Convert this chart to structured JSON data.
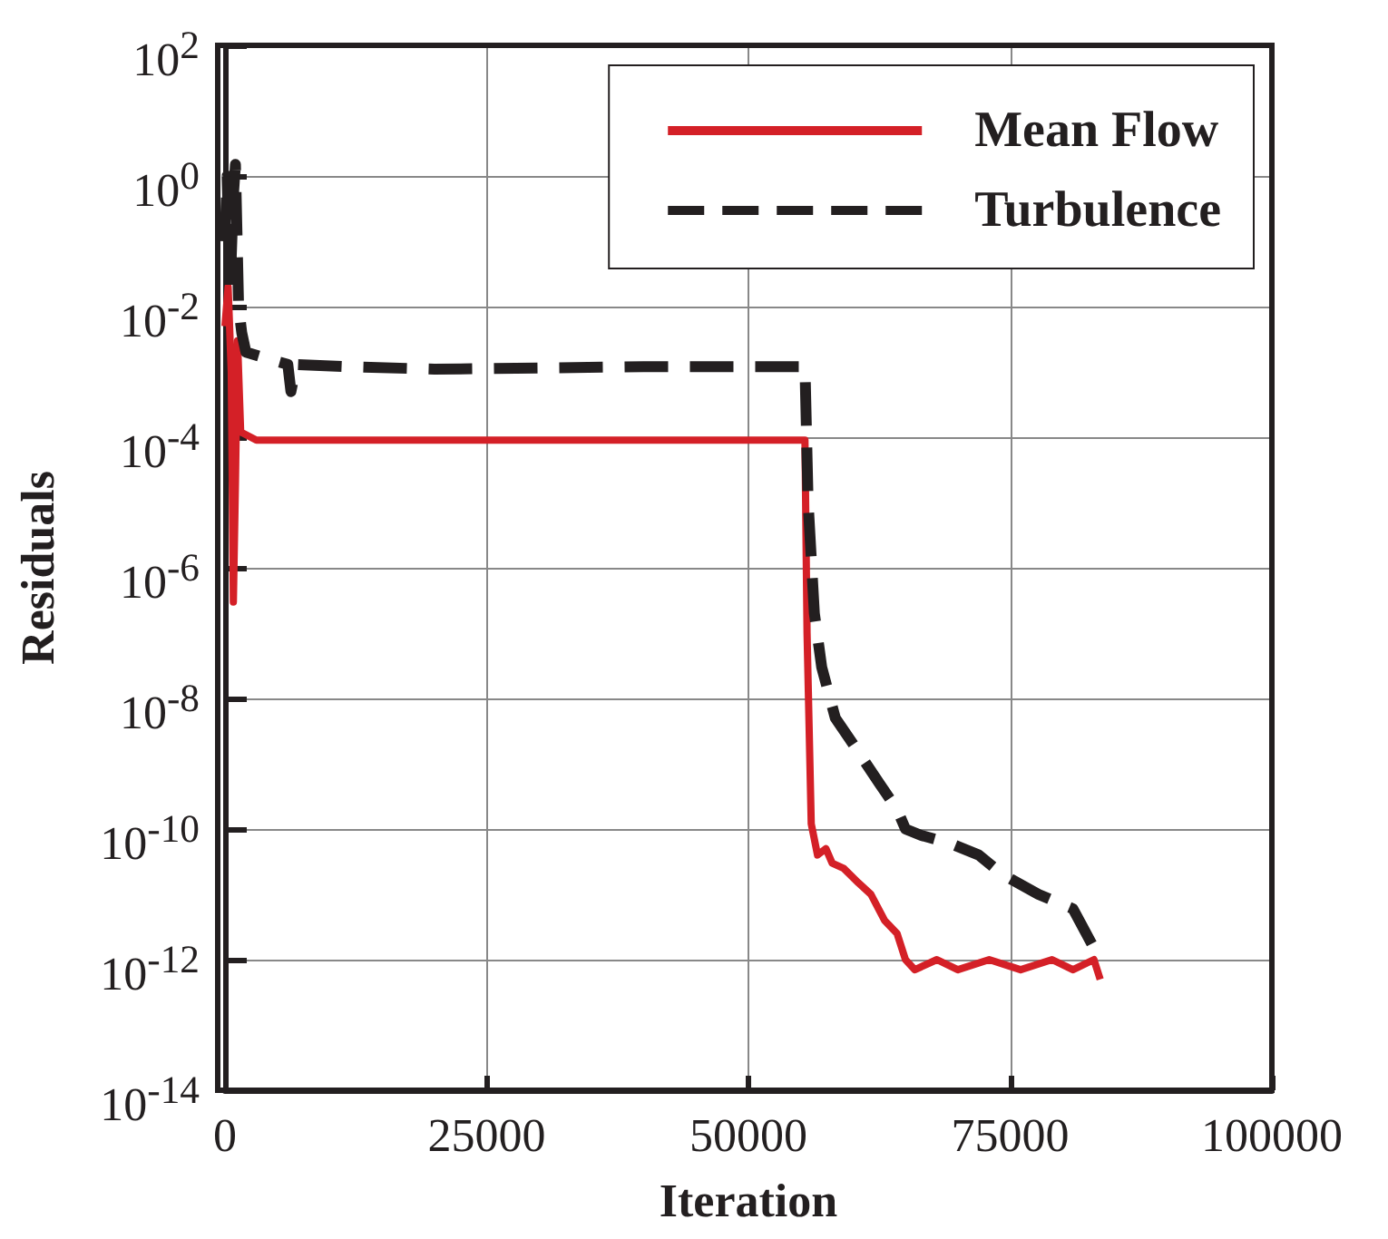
{
  "chart_data": {
    "type": "line",
    "xlabel": "Iteration",
    "ylabel": "Residuals",
    "xlim": [
      0,
      100000
    ],
    "xticks": [
      0,
      25000,
      50000,
      75000,
      100000
    ],
    "ylim": [
      1e-14,
      100
    ],
    "log": "y",
    "yticks": [
      {
        "value": 1e-14,
        "label": "10$^{-14}$"
      },
      {
        "value": 1e-12,
        "label": "10$^{-12}$"
      },
      {
        "value": 1e-10,
        "label": "10$^{-10}$"
      },
      {
        "value": 1e-08,
        "label": "10$^{-8}$"
      },
      {
        "value": 1e-06,
        "label": "10$^{-6}$"
      },
      {
        "value": 0.0001,
        "label": "10$^{-4}$"
      },
      {
        "value": 0.01,
        "label": "10$^{-2}$"
      },
      {
        "value": 1,
        "label": "10$^{0}$"
      },
      {
        "value": 100,
        "label": "10$^{2}$"
      }
    ],
    "grid": true,
    "legend": "top right",
    "marker": "none",
    "series": [
      {
        "name": "Mean Flow",
        "color": "#d42027",
        "line_style": "solid",
        "x": [
          0,
          300,
          600,
          800,
          1000,
          1200,
          1500,
          3000,
          10000,
          30000,
          55400,
          55600,
          56000,
          56600,
          57400,
          58000,
          59100,
          60500,
          61700,
          63000,
          64200,
          65000,
          65900,
          68000,
          70000,
          73000,
          76000,
          79000,
          81000,
          83000,
          83600
        ],
        "values": [
          0.005,
          0.02,
          0.001,
          3e-07,
          2e-05,
          0.003,
          0.00012,
          9e-05,
          9e-05,
          9e-05,
          9e-05,
          1e-07,
          1.2e-10,
          4e-11,
          5e-11,
          3e-11,
          2.5e-11,
          1.5e-11,
          1e-11,
          4e-12,
          2.5e-12,
          1e-12,
          7e-13,
          1e-12,
          7e-13,
          1e-12,
          7e-13,
          1e-12,
          7e-13,
          1e-12,
          5e-13
        ]
      },
      {
        "name": "Turbulence",
        "color": "#231f20",
        "line_style": "dashed",
        "x": [
          0,
          200,
          500,
          800,
          1000,
          1300,
          1600,
          2000,
          4000,
          6000,
          6300,
          6800,
          12000,
          20000,
          40000,
          55400,
          55700,
          56300,
          57000,
          58300,
          60000,
          62500,
          64200,
          65000,
          66500,
          69300,
          72000,
          74300,
          77700,
          81000,
          83600
        ],
        "values": [
          0.1,
          1,
          0.02,
          0.5,
          1.5,
          0.01,
          0.004,
          0.002,
          0.0016,
          0.0013,
          0.0005,
          0.0013,
          0.0012,
          0.0011,
          0.0012,
          0.0012,
          1e-05,
          2e-07,
          3e-08,
          5e-09,
          2e-09,
          5e-10,
          2e-10,
          1e-10,
          8e-11,
          6e-11,
          4e-11,
          2e-11,
          1e-11,
          6e-12,
          1e-12
        ]
      }
    ]
  }
}
